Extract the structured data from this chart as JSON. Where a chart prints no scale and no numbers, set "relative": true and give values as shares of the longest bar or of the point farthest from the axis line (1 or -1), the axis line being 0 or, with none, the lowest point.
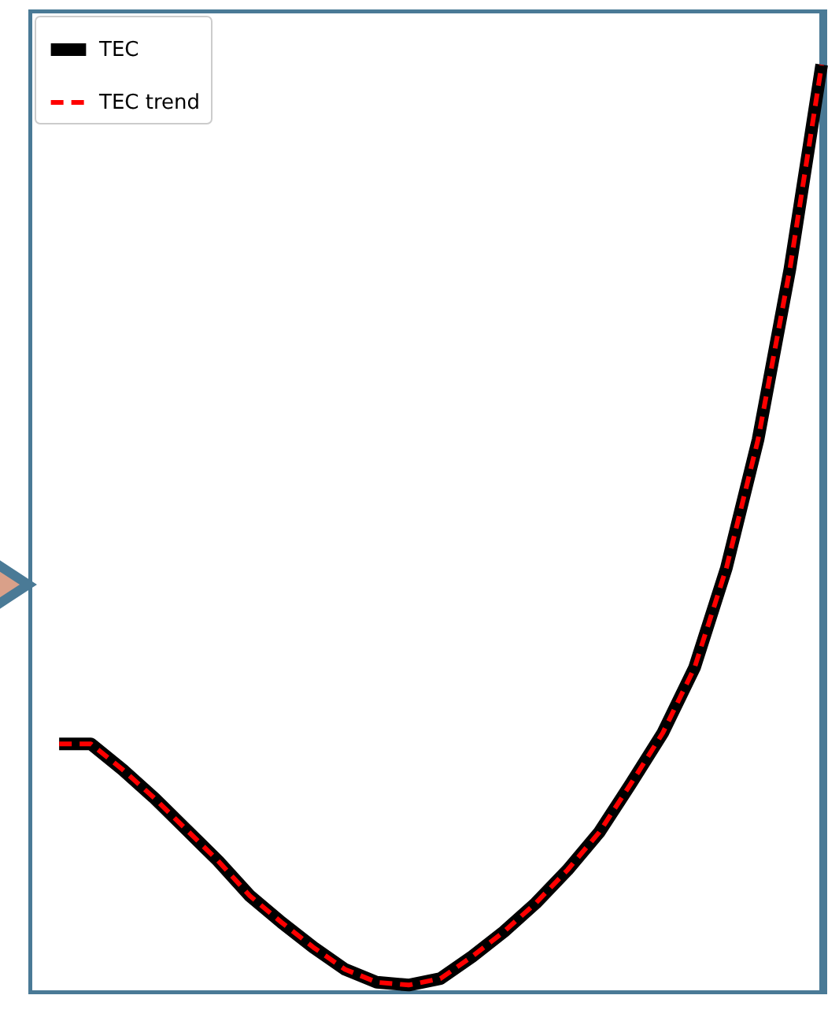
{
  "chart_data": {
    "type": "line",
    "relative": true,
    "categories": [
      null,
      null,
      null,
      null,
      null,
      null,
      null,
      null,
      null,
      null,
      null,
      null,
      null,
      null,
      null,
      null,
      null,
      null,
      null,
      null,
      null,
      null,
      null,
      null,
      null
    ],
    "series": [
      {
        "name": "TEC",
        "color": "#000000",
        "line_style": "solid",
        "values": [
          0.262,
          0.262,
          0.234,
          0.203,
          0.169,
          0.135,
          0.097,
          0.068,
          0.041,
          0.017,
          0.003,
          0,
          0.007,
          0.031,
          0.058,
          0.089,
          0.125,
          0.166,
          0.219,
          0.274,
          0.345,
          0.453,
          0.593,
          0.778,
          1
        ]
      },
      {
        "name": "TEC trend",
        "color": "#ff0000",
        "line_style": "dashed",
        "values": [
          0.262,
          0.262,
          0.234,
          0.203,
          0.169,
          0.135,
          0.097,
          0.068,
          0.041,
          0.017,
          0.003,
          0,
          0.007,
          0.031,
          0.058,
          0.089,
          0.125,
          0.166,
          0.219,
          0.274,
          0.345,
          0.453,
          0.593,
          0.778,
          1
        ]
      }
    ],
    "legend": "top left"
  }
}
